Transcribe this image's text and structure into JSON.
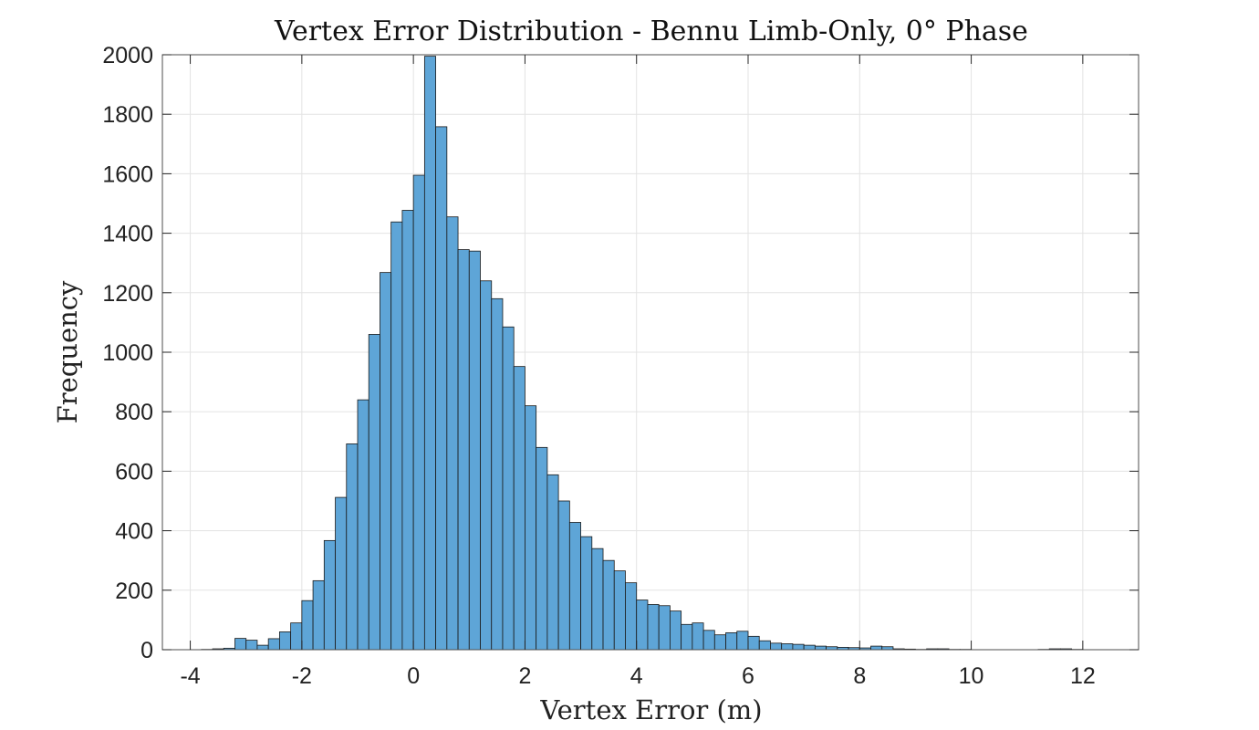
{
  "chart_data": {
    "type": "bar",
    "title": "Vertex Error Distribution - Bennu Limb-Only, 0° Phase",
    "xlabel": "Vertex Error (m)",
    "ylabel": "Frequency",
    "xlim": [
      -4.5,
      13.0
    ],
    "ylim": [
      0,
      2000
    ],
    "xticks": [
      -4,
      -2,
      0,
      2,
      4,
      6,
      8,
      10,
      12
    ],
    "xtick_labels": [
      "-4",
      "-2",
      "0",
      "2",
      "4",
      "6",
      "8",
      "10",
      "12"
    ],
    "yticks": [
      0,
      200,
      400,
      600,
      800,
      1000,
      1200,
      1400,
      1600,
      1800,
      2000
    ],
    "ytick_labels": [
      "0",
      "200",
      "400",
      "600",
      "800",
      "1000",
      "1200",
      "1400",
      "1600",
      "1800",
      "2000"
    ],
    "grid": true,
    "bin_width": 0.2,
    "bin_starts": [
      -3.8,
      -3.6,
      -3.4,
      -3.2,
      -3.0,
      -2.8,
      -2.6,
      -2.4,
      -2.2,
      -2.0,
      -1.8,
      -1.6,
      -1.4,
      -1.2,
      -1.0,
      -0.8,
      -0.6,
      -0.4,
      -0.2,
      0.0,
      0.2,
      0.4,
      0.6,
      0.8,
      1.0,
      1.2,
      1.4,
      1.6,
      1.8,
      2.0,
      2.2,
      2.4,
      2.6,
      2.8,
      3.0,
      3.2,
      3.4,
      3.6,
      3.8,
      4.0,
      4.2,
      4.4,
      4.6,
      4.8,
      5.0,
      5.2,
      5.4,
      5.6,
      5.8,
      6.0,
      6.2,
      6.4,
      6.6,
      6.8,
      7.0,
      7.2,
      7.4,
      7.6,
      7.8,
      8.0,
      8.2,
      8.4,
      8.6,
      8.8,
      9.0,
      9.2,
      9.4,
      9.6,
      9.8,
      10.0,
      10.2,
      10.4,
      10.6,
      10.8,
      11.0,
      11.2,
      11.4,
      11.6,
      11.8,
      12.0
    ],
    "values": [
      1,
      3,
      5,
      38,
      32,
      15,
      37,
      60,
      90,
      165,
      232,
      367,
      512,
      692,
      840,
      1060,
      1268,
      1438,
      1477,
      1595,
      1995,
      1758,
      1455,
      1345,
      1340,
      1240,
      1180,
      1085,
      952,
      820,
      680,
      588,
      500,
      428,
      380,
      340,
      300,
      265,
      225,
      167,
      152,
      148,
      130,
      85,
      90,
      65,
      50,
      57,
      62,
      45,
      30,
      22,
      20,
      18,
      15,
      12,
      10,
      8,
      7,
      6,
      12,
      10,
      3,
      2,
      1,
      3,
      3,
      1,
      1,
      0,
      0,
      0,
      0,
      0,
      0,
      1,
      3,
      3,
      1,
      0
    ],
    "bar_color": "#5ea5d7",
    "edge_color": "#1a1a1a"
  }
}
